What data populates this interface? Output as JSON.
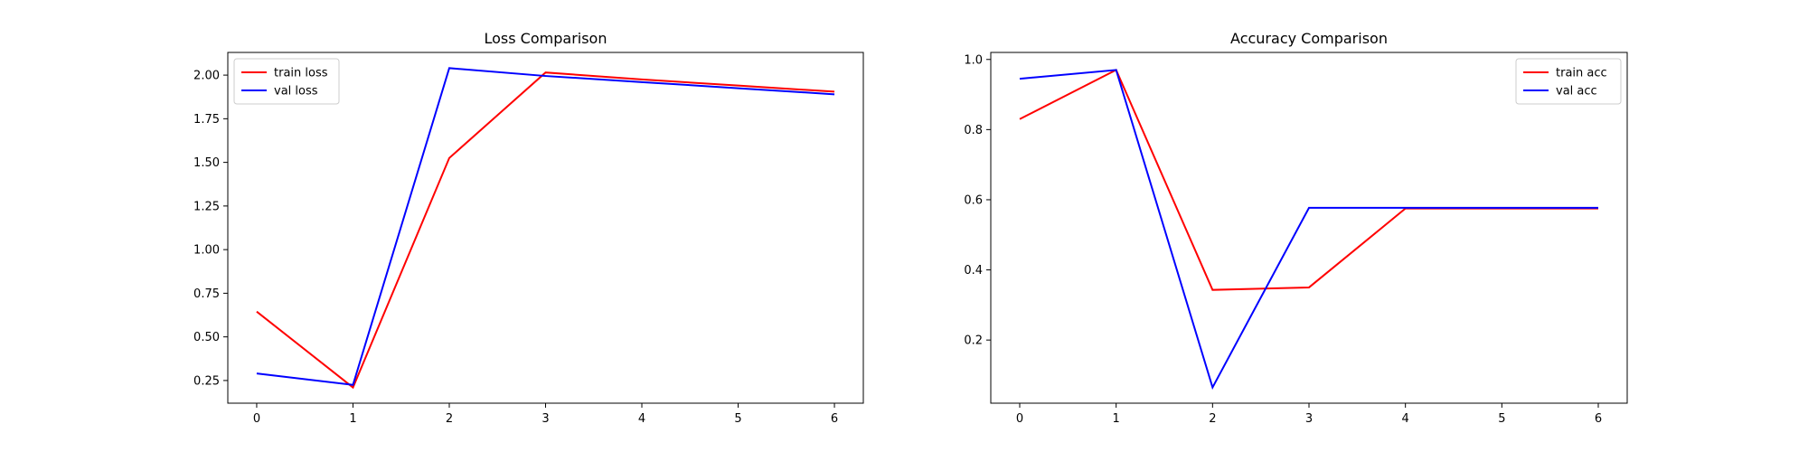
{
  "chart_data": [
    {
      "type": "line",
      "title": "Loss Comparison",
      "xlabel": "",
      "ylabel": "",
      "x": [
        0,
        1,
        2,
        3,
        4,
        5,
        6
      ],
      "xlim": [
        -0.3,
        6.3
      ],
      "ylim": [
        0.12,
        2.13
      ],
      "xticks": [
        0,
        1,
        2,
        3,
        4,
        5,
        6
      ],
      "yticks": [
        0.25,
        0.5,
        0.75,
        1.0,
        1.25,
        1.5,
        1.75,
        2.0
      ],
      "ytick_labels": [
        "0.25",
        "0.50",
        "0.75",
        "1.00",
        "1.25",
        "1.50",
        "1.75",
        "2.00"
      ],
      "grid": false,
      "legend_position": "top-left",
      "series": [
        {
          "name": "train loss",
          "color": "#ff0000",
          "values": [
            0.645,
            0.21,
            1.525,
            2.015,
            1.975,
            1.94,
            1.905
          ]
        },
        {
          "name": "val loss",
          "color": "#0000ff",
          "values": [
            0.29,
            0.225,
            2.04,
            1.995,
            1.96,
            1.925,
            1.89
          ]
        }
      ]
    },
    {
      "type": "line",
      "title": "Accuracy Comparison",
      "xlabel": "",
      "ylabel": "",
      "x": [
        0,
        1,
        2,
        3,
        4,
        5,
        6
      ],
      "xlim": [
        -0.3,
        6.3
      ],
      "ylim": [
        0.02,
        1.02
      ],
      "xticks": [
        0,
        1,
        2,
        3,
        4,
        5,
        6
      ],
      "yticks": [
        0.2,
        0.4,
        0.6,
        0.8,
        1.0
      ],
      "ytick_labels": [
        "0.2",
        "0.4",
        "0.6",
        "0.8",
        "1.0"
      ],
      "grid": false,
      "legend_position": "top-right",
      "series": [
        {
          "name": "train acc",
          "color": "#ff0000",
          "values": [
            0.83,
            0.97,
            0.343,
            0.35,
            0.575,
            0.575,
            0.575
          ]
        },
        {
          "name": "val acc",
          "color": "#0000ff",
          "values": [
            0.945,
            0.97,
            0.065,
            0.577,
            0.577,
            0.577,
            0.577
          ]
        }
      ]
    }
  ]
}
